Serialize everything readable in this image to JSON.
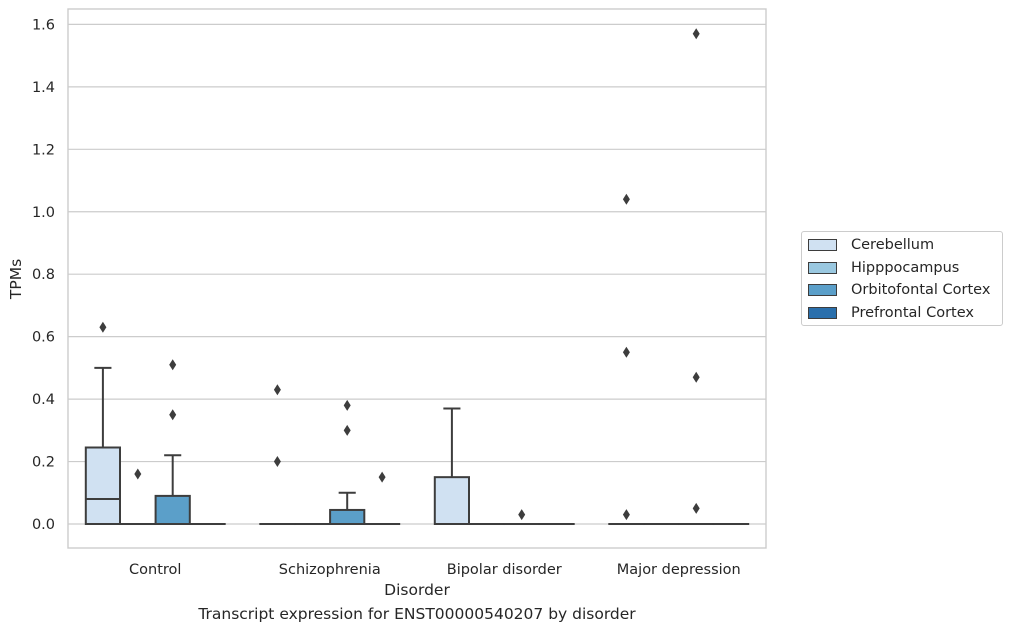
{
  "chart_data": {
    "type": "box",
    "title": "",
    "caption": "Transcript expression for ENST00000540207 by disorder",
    "xlabel": "Disorder",
    "ylabel": "TPMs",
    "ylim": [
      -0.075,
      1.65
    ],
    "yticks": [
      0.0,
      0.2,
      0.4,
      0.6,
      0.8,
      1.0,
      1.2,
      1.4,
      1.6
    ],
    "ytick_labels": [
      "0.0",
      "0.2",
      "0.4",
      "0.6",
      "0.8",
      "1.0",
      "1.2",
      "1.4",
      "1.6"
    ],
    "categories": [
      "Control",
      "Schizophrenia",
      "Bipolar disorder",
      "Major depression"
    ],
    "grid": "horizontal",
    "legend_position": "right",
    "series": [
      {
        "name": "Cerebellum",
        "color": "#d0e1f2",
        "boxes": [
          {
            "q1": 0.0,
            "median": 0.08,
            "q3": 0.245,
            "whisker_low": 0.0,
            "whisker_high": 0.5,
            "outliers": [
              0.63
            ]
          },
          {
            "q1": 0.0,
            "median": 0.0,
            "q3": 0.0,
            "whisker_low": 0.0,
            "whisker_high": 0.0,
            "outliers": [
              0.2,
              0.43
            ]
          },
          {
            "q1": 0.0,
            "median": 0.0,
            "q3": 0.15,
            "whisker_low": 0.0,
            "whisker_high": 0.37,
            "outliers": []
          },
          {
            "q1": 0.0,
            "median": 0.0,
            "q3": 0.0,
            "whisker_low": 0.0,
            "whisker_high": 0.0,
            "outliers": [
              0.03,
              0.55,
              1.04
            ]
          }
        ]
      },
      {
        "name": "Hipppocampus",
        "color": "#9ac8e0",
        "boxes": [
          {
            "q1": 0.0,
            "median": 0.0,
            "q3": 0.0,
            "whisker_low": 0.0,
            "whisker_high": 0.0,
            "outliers": [
              0.16
            ]
          },
          {
            "q1": 0.0,
            "median": 0.0,
            "q3": 0.0,
            "whisker_low": 0.0,
            "whisker_high": 0.0,
            "outliers": []
          },
          {
            "q1": 0.0,
            "median": 0.0,
            "q3": 0.0,
            "whisker_low": 0.0,
            "whisker_high": 0.0,
            "outliers": []
          },
          {
            "q1": 0.0,
            "median": 0.0,
            "q3": 0.0,
            "whisker_low": 0.0,
            "whisker_high": 0.0,
            "outliers": []
          }
        ]
      },
      {
        "name": "Orbitofontal Cortex",
        "color": "#5b9fc9",
        "boxes": [
          {
            "q1": 0.0,
            "median": 0.0,
            "q3": 0.09,
            "whisker_low": 0.0,
            "whisker_high": 0.22,
            "outliers": [
              0.35,
              0.51
            ]
          },
          {
            "q1": 0.0,
            "median": 0.0,
            "q3": 0.045,
            "whisker_low": 0.0,
            "whisker_high": 0.1,
            "outliers": [
              0.3,
              0.38
            ]
          },
          {
            "q1": 0.0,
            "median": 0.0,
            "q3": 0.0,
            "whisker_low": 0.0,
            "whisker_high": 0.0,
            "outliers": [
              0.03
            ]
          },
          {
            "q1": 0.0,
            "median": 0.0,
            "q3": 0.0,
            "whisker_low": 0.0,
            "whisker_high": 0.0,
            "outliers": [
              0.05,
              0.47,
              1.57
            ]
          }
        ]
      },
      {
        "name": "Prefrontal Cortex",
        "color": "#2a6fac",
        "boxes": [
          {
            "q1": 0.0,
            "median": 0.0,
            "q3": 0.0,
            "whisker_low": 0.0,
            "whisker_high": 0.0,
            "outliers": []
          },
          {
            "q1": 0.0,
            "median": 0.0,
            "q3": 0.0,
            "whisker_low": 0.0,
            "whisker_high": 0.0,
            "outliers": [
              0.15
            ]
          },
          {
            "q1": 0.0,
            "median": 0.0,
            "q3": 0.0,
            "whisker_low": 0.0,
            "whisker_high": 0.0,
            "outliers": []
          },
          {
            "q1": 0.0,
            "median": 0.0,
            "q3": 0.0,
            "whisker_low": 0.0,
            "whisker_high": 0.0,
            "outliers": []
          }
        ]
      }
    ]
  }
}
